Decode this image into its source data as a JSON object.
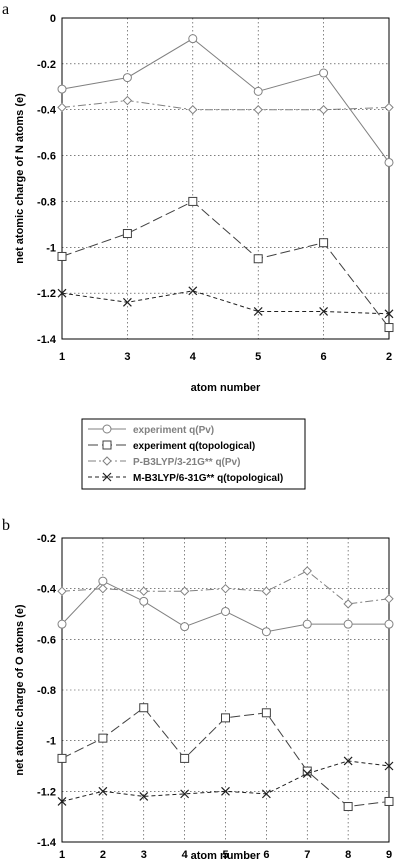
{
  "legend": [
    {
      "label": "experiment q(Pv)",
      "color": "#808080",
      "marker": "circle",
      "dash": "solid"
    },
    {
      "label": "experiment q(topological)",
      "color": "#404040",
      "marker": "square",
      "dash": "longdash"
    },
    {
      "label": "P-B3LYP/3-21G** q(Pv)",
      "color": "#808080",
      "marker": "diamond",
      "dash": "dashdot"
    },
    {
      "label": "M-B3LYP/6-31G** q(topological)",
      "color": "#202020",
      "marker": "cross",
      "dash": "short"
    }
  ],
  "chart_data": [
    {
      "type": "line",
      "panel_label": "a",
      "ylabel": "net atomic charge of N atoms (e)",
      "xlabel": "atom number",
      "categories": [
        "1",
        "3",
        "4",
        "5",
        "6",
        "2"
      ],
      "ylim": [
        -1.4,
        0
      ],
      "yticks": [
        0,
        -0.2,
        -0.4,
        -0.6,
        -0.8,
        -1,
        -1.2,
        -1.4
      ],
      "ytick_labels": [
        "0",
        "-0.2",
        "-0.4",
        "-0.6",
        "-0.8",
        "-1",
        "-1.2",
        "-1.4"
      ],
      "grid": true,
      "series": [
        {
          "name": "experiment q(Pv)",
          "values": [
            -0.31,
            -0.26,
            -0.09,
            -0.32,
            -0.24,
            -0.63
          ]
        },
        {
          "name": "experiment q(topological)",
          "values": [
            -1.04,
            -0.94,
            -0.8,
            -1.05,
            -0.98,
            -1.35
          ]
        },
        {
          "name": "P-B3LYP/3-21G** q(Pv)",
          "values": [
            -0.39,
            -0.36,
            -0.4,
            -0.4,
            -0.4,
            -0.39
          ]
        },
        {
          "name": "M-B3LYP/6-31G** q(topological)",
          "values": [
            -1.2,
            -1.24,
            -1.19,
            -1.28,
            -1.28,
            -1.29
          ]
        }
      ]
    },
    {
      "type": "line",
      "panel_label": "b",
      "ylabel": "net atomic charge of O atoms (e)",
      "xlabel": "atom number",
      "categories": [
        "1",
        "2",
        "3",
        "4",
        "5",
        "6",
        "7",
        "8",
        "9"
      ],
      "ylim": [
        -1.4,
        -0.2
      ],
      "yticks": [
        -0.2,
        -0.4,
        -0.6,
        -0.8,
        -1,
        -1.2,
        -1.4
      ],
      "ytick_labels": [
        "-0.2",
        "-0.4",
        "-0.6",
        "-0.8",
        "-1",
        "-1.2",
        "-1.4"
      ],
      "grid": true,
      "series": [
        {
          "name": "experiment q(Pv)",
          "values": [
            -0.54,
            -0.37,
            -0.45,
            -0.55,
            -0.49,
            -0.57,
            -0.54,
            -0.54,
            -0.54
          ]
        },
        {
          "name": "experiment q(topological)",
          "values": [
            -1.07,
            -0.99,
            -0.87,
            -1.07,
            -0.91,
            -0.89,
            -1.12,
            -1.26,
            -1.24
          ]
        },
        {
          "name": "P-B3LYP/3-21G** q(Pv)",
          "values": [
            -0.41,
            -0.4,
            -0.41,
            -0.41,
            -0.4,
            -0.41,
            -0.33,
            -0.46,
            -0.44
          ]
        },
        {
          "name": "M-B3LYP/6-31G** q(topological)",
          "values": [
            -1.24,
            -1.2,
            -1.22,
            -1.21,
            -1.2,
            -1.21,
            -1.13,
            -1.08,
            -1.1
          ]
        }
      ]
    }
  ]
}
